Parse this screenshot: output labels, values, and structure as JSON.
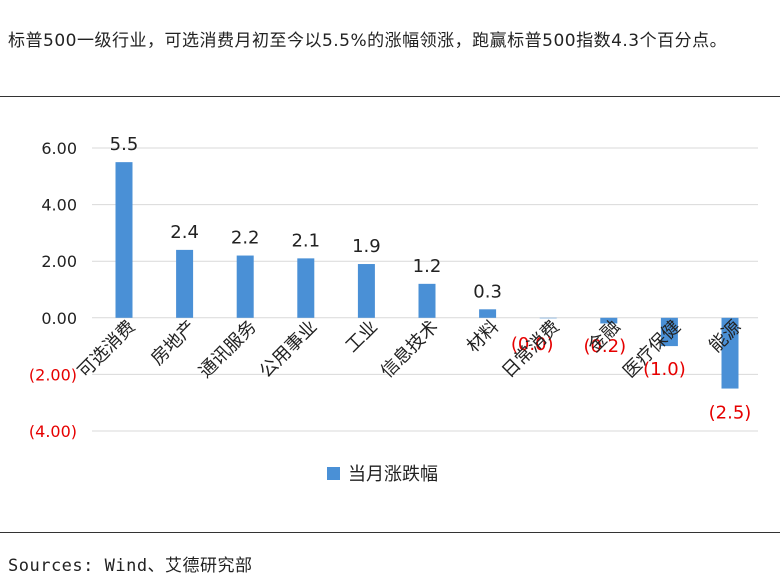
{
  "caption": "标普500一级行业，可选消费月初至今以5.5%的涨幅领涨，跑赢标普500指数4.3个百分点。",
  "source": "Sources: Wind、艾德研究部",
  "chart_data": {
    "type": "bar",
    "categories": [
      "可选消费",
      "房地产",
      "通讯服务",
      "公用事业",
      "工业",
      "信息技术",
      "材料",
      "日常消费",
      "金融",
      "医疗保健",
      "能源"
    ],
    "series": [
      {
        "name": "当月涨跌幅",
        "values": [
          5.5,
          2.4,
          2.2,
          2.1,
          1.9,
          1.2,
          0.3,
          0.0,
          -0.2,
          -1.0,
          -2.5
        ]
      }
    ],
    "data_labels": [
      "5.5",
      "2.4",
      "2.2",
      "2.1",
      "1.9",
      "1.2",
      "0.3",
      "(0.0)",
      "(0.2)",
      "(1.0)",
      "(2.5)"
    ],
    "yticks": [
      "6.00",
      "4.00",
      "2.00",
      "0.00",
      "(2.00)",
      "(4.00)"
    ],
    "ytick_values": [
      6,
      4,
      2,
      0,
      -2,
      -4
    ],
    "ylim": [
      -4,
      6
    ],
    "grid": true,
    "legend_position": "bottom-center",
    "colors": {
      "bar": "#4a90d6",
      "positive_label": "#222222",
      "negative_label": "#e60000",
      "negative_tick": "#e60000",
      "grid": "#d9d9d9"
    }
  }
}
